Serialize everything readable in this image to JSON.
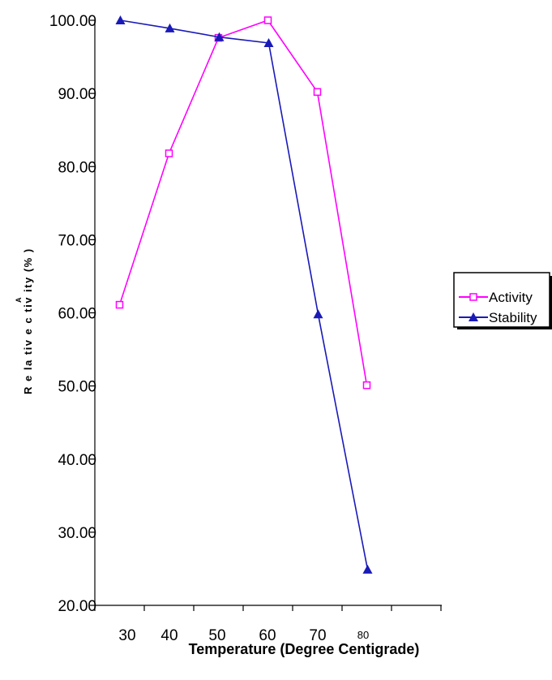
{
  "chart_data": {
    "type": "line",
    "x": [
      30,
      40,
      50,
      60,
      70,
      80
    ],
    "x_tick_labels": [
      "30",
      "40",
      "50",
      "60",
      "70",
      "80"
    ],
    "y_tick_labels": [
      "20.00",
      "30.00",
      "40.00",
      "50.00",
      "60.00",
      "70.00",
      "80.00",
      "90.00",
      "100.00"
    ],
    "ylim": [
      20,
      100
    ],
    "xlabel": "Temperature (Degree Centigrade)",
    "ylabel": "R e la tiv e   c   tiv ity  (% )",
    "ylabel_fragment": "A",
    "grid": false,
    "legend_position": "right",
    "series": [
      {
        "name": "Activity",
        "values": [
          61.1,
          81.8,
          97.6,
          100.0,
          90.2,
          50.1
        ],
        "color": "#ff00ff",
        "marker": "hollow-square"
      },
      {
        "name": "Stability",
        "values": [
          100.0,
          98.9,
          97.7,
          96.9,
          59.8,
          24.9
        ],
        "color": "#1a1ab8",
        "marker": "filled-triangle"
      }
    ]
  }
}
